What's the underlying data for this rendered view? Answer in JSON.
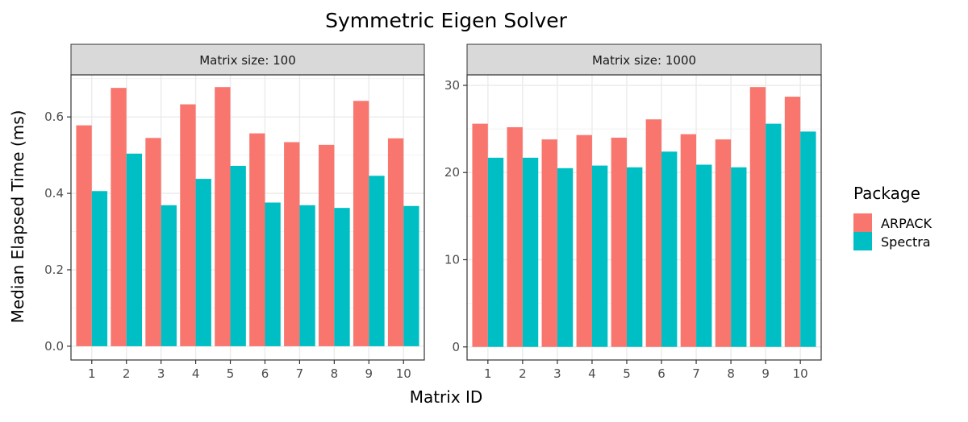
{
  "chart_data": {
    "type": "bar",
    "title": "Symmetric Eigen Solver",
    "xlabel": "Matrix ID",
    "ylabel": "Median Elapsed Time (ms)",
    "categories": [
      "1",
      "2",
      "3",
      "4",
      "5",
      "6",
      "7",
      "8",
      "9",
      "10"
    ],
    "legend": {
      "title": "Package",
      "position": "right",
      "entries": [
        "ARPACK",
        "Spectra"
      ]
    },
    "colors": {
      "ARPACK": "#F8766D",
      "Spectra": "#00BFC4"
    },
    "panels": [
      {
        "strip": "Matrix size: 100",
        "ylim": [
          -0.036,
          0.71
        ],
        "yticks": [
          0.0,
          0.2,
          0.4,
          0.6
        ],
        "ytick_labels": [
          "0.0",
          "0.2",
          "0.4",
          "0.6"
        ],
        "series": [
          {
            "name": "ARPACK",
            "values": [
              0.578,
              0.676,
              0.545,
              0.633,
              0.678,
              0.557,
              0.534,
              0.527,
              0.642,
              0.544
            ]
          },
          {
            "name": "Spectra",
            "values": [
              0.406,
              0.504,
              0.369,
              0.438,
              0.472,
              0.376,
              0.369,
              0.362,
              0.446,
              0.367
            ]
          }
        ]
      },
      {
        "strip": "Matrix size: 1000",
        "ylim": [
          -1.5,
          31.2
        ],
        "yticks": [
          0,
          10,
          20,
          30
        ],
        "ytick_labels": [
          "0",
          "10",
          "20",
          "30"
        ],
        "series": [
          {
            "name": "ARPACK",
            "values": [
              25.6,
              25.2,
              23.8,
              24.3,
              24.0,
              26.1,
              24.4,
              23.8,
              29.8,
              28.7
            ]
          },
          {
            "name": "Spectra",
            "values": [
              21.7,
              21.7,
              20.5,
              20.8,
              20.6,
              22.4,
              20.9,
              20.6,
              25.6,
              24.7
            ]
          }
        ]
      }
    ]
  }
}
